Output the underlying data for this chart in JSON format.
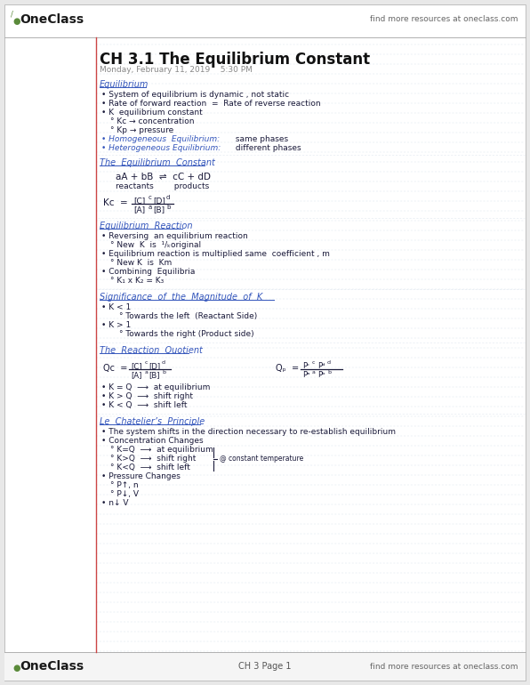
{
  "bg_color": "#e8e8e8",
  "page_bg": "#ffffff",
  "line_color": "#c0cfe0",
  "red_line_color": "#cc4444",
  "title": "CH 3.1 The Equilibrium Constant",
  "date": "Monday, February 11, 2019    5:30 PM",
  "oneclass_color": "#1a1a1a",
  "oneclass_green": "#5a8a3a",
  "find_more": "find more resources at oneclass.com",
  "blue_heading": "#3355bb",
  "dark_text": "#1a1a3a",
  "footer_text": "CH 3 Page 1",
  "header_separator": "#b0b0b0",
  "footer_separator": "#b0b0b0"
}
